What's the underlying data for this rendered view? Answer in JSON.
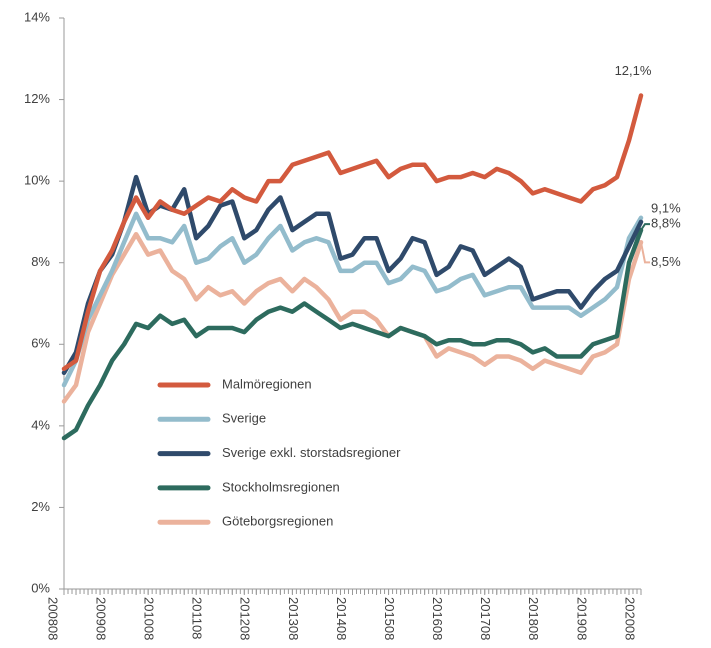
{
  "chart_data": {
    "type": "line",
    "categories": [
      "200808",
      null,
      null,
      null,
      "200908",
      null,
      null,
      null,
      "201008",
      null,
      null,
      null,
      "201108",
      null,
      null,
      null,
      "201208",
      null,
      null,
      null,
      "201308",
      null,
      null,
      null,
      "201408",
      null,
      null,
      null,
      "201508",
      null,
      null,
      null,
      "201608",
      null,
      null,
      null,
      "201708",
      null,
      null,
      null,
      "201808",
      null,
      null,
      null,
      "201908",
      null,
      null,
      null,
      "202008"
    ],
    "ylim": [
      0,
      14
    ],
    "yticks": [
      {
        "value": 0,
        "label": "0%"
      },
      {
        "value": 2,
        "label": "2%"
      },
      {
        "value": 4,
        "label": "4%"
      },
      {
        "value": 6,
        "label": "6%"
      },
      {
        "value": 8,
        "label": "8%"
      },
      {
        "value": 10,
        "label": "10%"
      },
      {
        "value": 12,
        "label": "12%"
      },
      {
        "value": 14,
        "label": "14%"
      }
    ],
    "series": [
      {
        "name": "Malmöregionen",
        "color": "#d35a3e",
        "values": [
          5.4,
          5.6,
          6.8,
          7.8,
          8.3,
          9.0,
          9.6,
          9.1,
          9.5,
          9.3,
          9.2,
          9.4,
          9.6,
          9.5,
          9.8,
          9.6,
          9.5,
          10.0,
          10.0,
          10.4,
          10.5,
          10.6,
          10.7,
          10.2,
          10.3,
          10.4,
          10.5,
          10.1,
          10.3,
          10.4,
          10.4,
          10.0,
          10.1,
          10.1,
          10.2,
          10.1,
          10.3,
          10.2,
          10.0,
          9.7,
          9.8,
          9.7,
          9.6,
          9.5,
          9.8,
          9.9,
          10.1,
          11.0,
          12.1
        ],
        "value_labels": [
          null,
          null,
          null,
          null,
          null,
          null,
          null,
          null,
          null,
          null,
          null,
          null,
          null,
          null,
          null,
          null,
          null,
          null,
          null,
          null,
          null,
          null,
          null,
          null,
          null,
          null,
          null,
          null,
          null,
          null,
          null,
          null,
          null,
          null,
          null,
          null,
          null,
          null,
          null,
          null,
          null,
          null,
          null,
          null,
          null,
          null,
          null,
          null,
          "12,1%"
        ]
      },
      {
        "name": "Sverige",
        "color": "#93bccc",
        "values": [
          5.0,
          5.6,
          6.6,
          7.2,
          7.8,
          8.5,
          9.2,
          8.6,
          8.6,
          8.5,
          8.9,
          8.0,
          8.1,
          8.4,
          8.6,
          8.0,
          8.2,
          8.6,
          8.9,
          8.3,
          8.5,
          8.6,
          8.5,
          7.8,
          7.8,
          8.0,
          8.0,
          7.5,
          7.6,
          7.9,
          7.8,
          7.3,
          7.4,
          7.6,
          7.7,
          7.2,
          7.3,
          7.4,
          7.4,
          6.9,
          6.9,
          6.9,
          6.9,
          6.7,
          6.9,
          7.1,
          7.4,
          8.6,
          9.1
        ],
        "value_labels": [
          null,
          null,
          null,
          null,
          null,
          null,
          null,
          null,
          null,
          null,
          null,
          null,
          null,
          null,
          null,
          null,
          null,
          null,
          null,
          null,
          null,
          null,
          null,
          null,
          null,
          null,
          null,
          null,
          null,
          null,
          null,
          null,
          null,
          null,
          null,
          null,
          null,
          null,
          null,
          null,
          null,
          null,
          null,
          null,
          null,
          null,
          null,
          null,
          "9,1%"
        ]
      },
      {
        "name": "Sverige exkl. storstadsregioner",
        "color": "#2f4a6b",
        "values": [
          5.3,
          5.8,
          7.0,
          7.8,
          8.2,
          9.0,
          10.1,
          9.2,
          9.4,
          9.3,
          9.8,
          8.6,
          8.9,
          9.4,
          9.5,
          8.6,
          8.8,
          9.3,
          9.6,
          8.8,
          9.0,
          9.2,
          9.2,
          8.1,
          8.2,
          8.6,
          8.6,
          7.8,
          8.1,
          8.6,
          8.5,
          7.7,
          7.9,
          8.4,
          8.3,
          7.7,
          7.9,
          8.1,
          7.9,
          7.1,
          7.2,
          7.3,
          7.3,
          6.9,
          7.3,
          7.6,
          7.8,
          8.4,
          9.0
        ]
      },
      {
        "name": "Stockholmsregionen",
        "color": "#2d6b5e",
        "values": [
          3.7,
          3.9,
          4.5,
          5.0,
          5.6,
          6.0,
          6.5,
          6.4,
          6.7,
          6.5,
          6.6,
          6.2,
          6.4,
          6.4,
          6.4,
          6.3,
          6.6,
          6.8,
          6.9,
          6.8,
          7.0,
          6.8,
          6.6,
          6.4,
          6.5,
          6.4,
          6.3,
          6.2,
          6.4,
          6.3,
          6.2,
          6.0,
          6.1,
          6.1,
          6.0,
          6.0,
          6.1,
          6.1,
          6.0,
          5.8,
          5.9,
          5.7,
          5.7,
          5.7,
          6.0,
          6.1,
          6.2,
          8.0,
          8.8
        ],
        "value_labels": [
          null,
          null,
          null,
          null,
          null,
          null,
          null,
          null,
          null,
          null,
          null,
          null,
          null,
          null,
          null,
          null,
          null,
          null,
          null,
          null,
          null,
          null,
          null,
          null,
          null,
          null,
          null,
          null,
          null,
          null,
          null,
          null,
          null,
          null,
          null,
          null,
          null,
          null,
          null,
          null,
          null,
          null,
          null,
          null,
          null,
          null,
          null,
          null,
          "8,8%"
        ]
      },
      {
        "name": "Göteborgsregionen",
        "color": "#ebb29c",
        "values": [
          4.6,
          5.0,
          6.3,
          7.0,
          7.7,
          8.2,
          8.7,
          8.2,
          8.3,
          7.8,
          7.6,
          7.1,
          7.4,
          7.2,
          7.3,
          7.0,
          7.3,
          7.5,
          7.6,
          7.3,
          7.6,
          7.4,
          7.1,
          6.6,
          6.8,
          6.8,
          6.6,
          6.2,
          6.4,
          6.3,
          6.2,
          5.7,
          5.9,
          5.8,
          5.7,
          5.5,
          5.7,
          5.7,
          5.6,
          5.4,
          5.6,
          5.5,
          5.4,
          5.3,
          5.7,
          5.8,
          6.0,
          7.6,
          8.5
        ],
        "value_labels": [
          null,
          null,
          null,
          null,
          null,
          null,
          null,
          null,
          null,
          null,
          null,
          null,
          null,
          null,
          null,
          null,
          null,
          null,
          null,
          null,
          null,
          null,
          null,
          null,
          null,
          null,
          null,
          null,
          null,
          null,
          null,
          null,
          null,
          null,
          null,
          null,
          null,
          null,
          null,
          null,
          null,
          null,
          null,
          null,
          null,
          null,
          null,
          null,
          "8,5%"
        ]
      }
    ]
  }
}
